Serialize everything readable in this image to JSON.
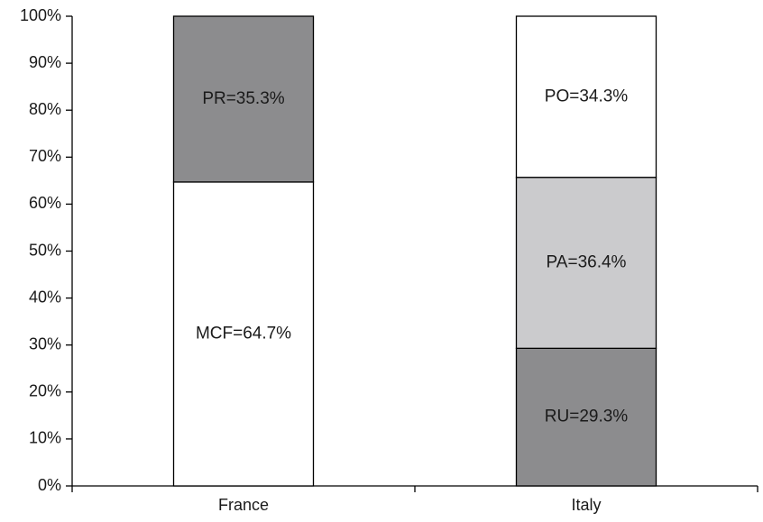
{
  "chart_data": {
    "type": "bar",
    "stacked": true,
    "categories": [
      "France",
      "Italy"
    ],
    "ylim": [
      0,
      100
    ],
    "yticks": [
      0,
      10,
      20,
      30,
      40,
      50,
      60,
      70,
      80,
      90,
      100
    ],
    "ytick_labels": [
      "0%",
      "10%",
      "20%",
      "30%",
      "40%",
      "50%",
      "60%",
      "70%",
      "80%",
      "90%",
      "100%"
    ],
    "grid": false,
    "legend": "none",
    "stacks": [
      {
        "category": "France",
        "segments": [
          {
            "label": "MCF=64.7%",
            "value": 64.7,
            "color": "#ffffff"
          },
          {
            "label": "PR=35.3%",
            "value": 35.3,
            "color": "#8c8c8e"
          }
        ]
      },
      {
        "category": "Italy",
        "segments": [
          {
            "label": "RU=29.3%",
            "value": 29.3,
            "color": "#8c8c8e"
          },
          {
            "label": "PA=36.4%",
            "value": 36.4,
            "color": "#cbcbcd"
          },
          {
            "label": "PO=34.3%",
            "value": 34.3,
            "color": "#ffffff"
          }
        ]
      }
    ]
  }
}
